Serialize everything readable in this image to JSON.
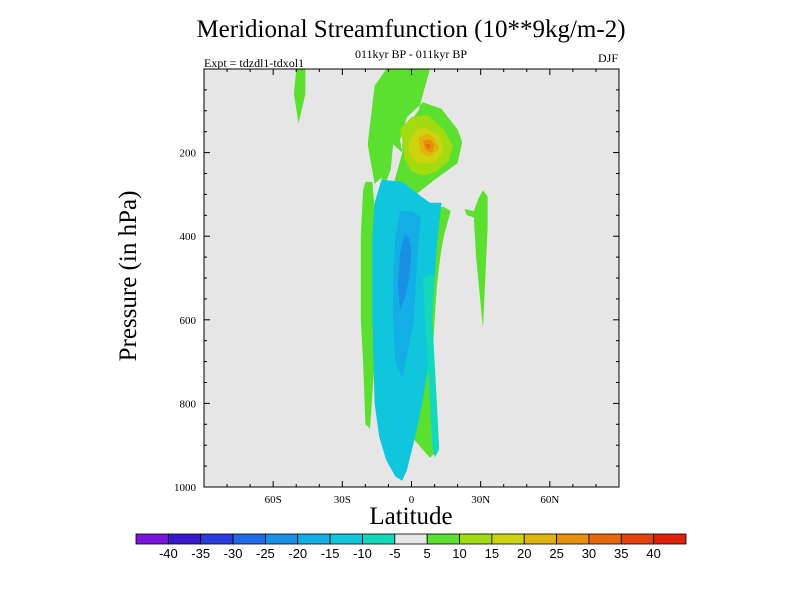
{
  "header": {
    "title": "Meridional Streamfunction (10**9kg/m-2)",
    "subtitle": "011kyr BP - 011kyr BP",
    "expt": "Expt = tdzdl1-tdxol1",
    "season": "DJF"
  },
  "chart_data": {
    "type": "heatmap",
    "title": "Meridional Streamfunction (10**9kg/m-2)",
    "xlabel": "Latitude",
    "ylabel": "Pressure (in hPa)",
    "xlim": [
      -90,
      90
    ],
    "ylim": [
      1000,
      0
    ],
    "x_ticks": [
      {
        "value": -60,
        "label": "60S"
      },
      {
        "value": -30,
        "label": "30S"
      },
      {
        "value": 0,
        "label": "0"
      },
      {
        "value": 30,
        "label": "30N"
      },
      {
        "value": 60,
        "label": "60N"
      }
    ],
    "y_ticks": [
      {
        "value": 200,
        "label": "200"
      },
      {
        "value": 400,
        "label": "400"
      },
      {
        "value": 600,
        "label": "600"
      },
      {
        "value": 800,
        "label": "800"
      },
      {
        "value": 1000,
        "label": "1000"
      }
    ],
    "background_color": "#e6e6e6",
    "colorbar": {
      "labels": [
        "-40",
        "-35",
        "-30",
        "-25",
        "-20",
        "-15",
        "-10",
        "-5",
        "5",
        "10",
        "15",
        "20",
        "25",
        "30",
        "35",
        "40"
      ],
      "colors": [
        "#7a14e0",
        "#3a18d0",
        "#2a3ce0",
        "#1e6ae8",
        "#1990e6",
        "#13aee6",
        "#10c6dc",
        "#14d8bc",
        "#e6e6e6",
        "#5ce030",
        "#a2dc10",
        "#cdd40e",
        "#e0b40e",
        "#e6900c",
        "#e66a0c",
        "#e6420e",
        "#e0200a"
      ]
    },
    "regions": [
      {
        "color": "#5ce030",
        "points": [
          [
            -11,
            1
          ],
          [
            -16,
            40
          ],
          [
            -19,
            180
          ],
          [
            -16,
            275
          ],
          [
            -13,
            260
          ],
          [
            -12,
            300
          ],
          [
            -14,
            330
          ],
          [
            -18,
            340
          ],
          [
            -19,
            500
          ],
          [
            -17,
            700
          ],
          [
            -14,
            825
          ],
          [
            -11,
            600
          ],
          [
            -10,
            400
          ],
          [
            -9,
            300
          ],
          [
            -4,
            200
          ],
          [
            -5,
            170
          ],
          [
            -2,
            115
          ],
          [
            5,
            80
          ],
          [
            13,
            95
          ],
          [
            20,
            145
          ],
          [
            22,
            175
          ],
          [
            20,
            225
          ],
          [
            10,
            265
          ],
          [
            2,
            300
          ],
          [
            -4,
            315
          ],
          [
            -1,
            325
          ],
          [
            8,
            335
          ],
          [
            14,
            330
          ],
          [
            17,
            340
          ],
          [
            14,
            400
          ],
          [
            13,
            430
          ],
          [
            12,
            470
          ],
          [
            11,
            520
          ],
          [
            10,
            600
          ],
          [
            9,
            700
          ],
          [
            10,
            800
          ],
          [
            11,
            915
          ],
          [
            8,
            930
          ],
          [
            0,
            880
          ],
          [
            -3,
            890
          ],
          [
            -6,
            930
          ],
          [
            -8,
            950
          ],
          [
            -10,
            910
          ],
          [
            -12,
            850
          ],
          [
            -13,
            700
          ],
          [
            -15,
            500
          ],
          [
            -13,
            350
          ],
          [
            -12,
            300
          ],
          [
            -11,
            270
          ],
          [
            -9,
            240
          ],
          [
            -8,
            180
          ],
          [
            -4,
            200
          ],
          [
            -4,
            150
          ],
          [
            3,
            100
          ],
          [
            8,
            1
          ]
        ]
      },
      {
        "color": "#5ce030",
        "points": [
          [
            -50,
            1
          ],
          [
            -51,
            60
          ],
          [
            -49,
            130
          ],
          [
            -46,
            60
          ],
          [
            -46,
            1
          ]
        ]
      },
      {
        "color": "#5ce030",
        "points": [
          [
            -20,
            270
          ],
          [
            -21,
            290
          ],
          [
            -22,
            400
          ],
          [
            -22,
            500
          ],
          [
            -22,
            600
          ],
          [
            -21,
            700
          ],
          [
            -20,
            850
          ],
          [
            -18,
            860
          ],
          [
            -16,
            700
          ],
          [
            -15,
            500
          ],
          [
            -16,
            330
          ],
          [
            -17,
            270
          ]
        ]
      },
      {
        "color": "#5ce030",
        "points": [
          [
            23,
            335
          ],
          [
            24,
            350
          ],
          [
            27,
            355
          ],
          [
            28,
            450
          ],
          [
            31,
            620
          ],
          [
            32,
            500
          ],
          [
            33,
            380
          ],
          [
            33,
            305
          ],
          [
            31,
            290
          ],
          [
            29,
            310
          ],
          [
            27,
            340
          ]
        ]
      },
      {
        "color": "#10c6dc",
        "points": [
          [
            -13,
            265
          ],
          [
            -16,
            320
          ],
          [
            -17,
            400
          ],
          [
            -17,
            600
          ],
          [
            -16,
            800
          ],
          [
            -14,
            880
          ],
          [
            -11,
            935
          ],
          [
            -7,
            975
          ],
          [
            -4,
            985
          ],
          [
            -2,
            960
          ],
          [
            2,
            870
          ],
          [
            5,
            790
          ],
          [
            8,
            690
          ],
          [
            9,
            580
          ],
          [
            10,
            500
          ],
          [
            11,
            420
          ],
          [
            13,
            320
          ],
          [
            8,
            320
          ],
          [
            3,
            300
          ],
          [
            -4,
            270
          ]
        ]
      },
      {
        "color": "#14d8bc",
        "points": [
          [
            5,
            500
          ],
          [
            6,
            600
          ],
          [
            7,
            700
          ],
          [
            8,
            800
          ],
          [
            9,
            900
          ],
          [
            10,
            930
          ],
          [
            12,
            910
          ],
          [
            11,
            800
          ],
          [
            10,
            700
          ],
          [
            9,
            600
          ],
          [
            10,
            500
          ],
          [
            8,
            490
          ]
        ]
      },
      {
        "color": "#13aee6",
        "points": [
          [
            -5,
            340
          ],
          [
            -7,
            400
          ],
          [
            -8,
            500
          ],
          [
            -8,
            600
          ],
          [
            -7,
            700
          ],
          [
            -4,
            740
          ],
          [
            -2,
            690
          ],
          [
            1,
            600
          ],
          [
            2,
            500
          ],
          [
            3,
            420
          ],
          [
            4,
            355
          ],
          [
            0,
            340
          ]
        ]
      },
      {
        "color": "#1990e6",
        "points": [
          [
            -3,
            395
          ],
          [
            -5,
            440
          ],
          [
            -6,
            520
          ],
          [
            -5,
            575
          ],
          [
            -3,
            550
          ],
          [
            -1,
            500
          ],
          [
            0,
            440
          ],
          [
            -1,
            405
          ]
        ]
      },
      {
        "color": "#a2dc10",
        "points": [
          [
            -4,
            170
          ],
          [
            -3,
            215
          ],
          [
            0,
            245
          ],
          [
            5,
            255
          ],
          [
            11,
            245
          ],
          [
            16,
            220
          ],
          [
            18,
            185
          ],
          [
            14,
            145
          ],
          [
            7,
            110
          ],
          [
            0,
            115
          ],
          [
            -5,
            145
          ]
        ]
      },
      {
        "color": "#cdd40e",
        "points": [
          [
            -1,
            175
          ],
          [
            -1,
            205
          ],
          [
            3,
            225
          ],
          [
            10,
            225
          ],
          [
            14,
            195
          ],
          [
            12,
            160
          ],
          [
            6,
            140
          ],
          [
            2,
            145
          ]
        ]
      },
      {
        "color": "#e0b40e",
        "points": [
          [
            3,
            165
          ],
          [
            4,
            200
          ],
          [
            8,
            210
          ],
          [
            12,
            190
          ],
          [
            10,
            165
          ],
          [
            7,
            155
          ]
        ]
      },
      {
        "color": "#e6900c",
        "points": [
          [
            5,
            170
          ],
          [
            6,
            195
          ],
          [
            9,
            200
          ],
          [
            10,
            180
          ],
          [
            8,
            168
          ]
        ]
      },
      {
        "color": "#e66a0c",
        "points": [
          [
            6,
            180
          ],
          [
            7,
            190
          ],
          [
            8,
            190
          ],
          [
            8,
            180
          ]
        ]
      }
    ]
  }
}
